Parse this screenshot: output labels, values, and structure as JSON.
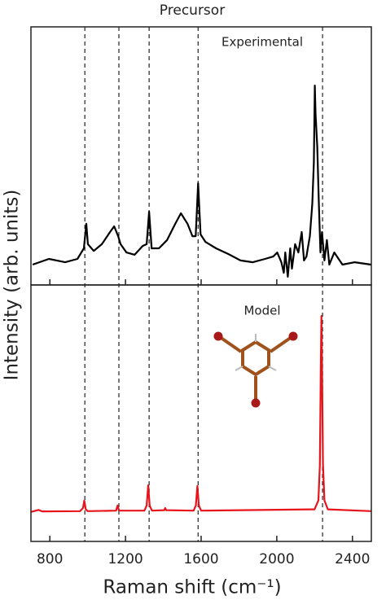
{
  "chart_data": {
    "type": "line",
    "title": "Precursor",
    "xlabel": "Raman shift (cm⁻¹)",
    "ylabel": "Intensity (arb. units)",
    "xlim": [
      700,
      2500
    ],
    "xticks": [
      800,
      1200,
      1600,
      2000,
      2400
    ],
    "ylim": [
      0,
      100
    ],
    "vlines": [
      985,
      1165,
      1325,
      1584,
      2242
    ],
    "series": [
      {
        "name": "Experimental",
        "color": "#000000",
        "x": [
          709,
          795,
          881,
          946,
          980,
          993,
          1001,
          1032,
          1075,
          1118,
          1140,
          1161,
          1174,
          1205,
          1248,
          1291,
          1312,
          1325,
          1338,
          1377,
          1420,
          1463,
          1493,
          1528,
          1554,
          1571,
          1584,
          1597,
          1623,
          1679,
          1744,
          1808,
          1873,
          1938,
          1981,
          2002,
          2024,
          2037,
          2045,
          2058,
          2071,
          2080,
          2097,
          2114,
          2132,
          2144,
          2157,
          2175,
          2188,
          2196,
          2201,
          2205,
          2214,
          2222,
          2231,
          2239,
          2252,
          2265,
          2278,
          2304,
          2347,
          2412,
          2498
        ],
        "values": [
          7.9,
          10.1,
          8.8,
          10.1,
          14.2,
          23.7,
          15.8,
          13.2,
          15.8,
          20.5,
          22.7,
          18.9,
          15.8,
          12.6,
          11.7,
          15.1,
          15.8,
          28.4,
          14.2,
          14.2,
          17.4,
          23.7,
          27.8,
          23.7,
          18.9,
          18.9,
          39.4,
          19.6,
          16.7,
          14.2,
          12,
          9.5,
          8.8,
          10.1,
          11,
          12.6,
          8.8,
          4.7,
          12.6,
          3.2,
          14.2,
          6.3,
          15.8,
          12.6,
          20.5,
          9.5,
          11,
          18.9,
          31.5,
          47.3,
          77.3,
          66.2,
          53.6,
          33.1,
          12.6,
          20.5,
          9.5,
          17.4,
          7.9,
          12.6,
          7.9,
          8.8,
          7.9
        ]
      },
      {
        "name": "Model",
        "color": "#e8141c",
        "x": [
          700,
          740,
          760,
          960,
          975,
          982,
          990,
          1000,
          1150,
          1158,
          1166,
          1300,
          1312,
          1320,
          1328,
          1340,
          1405,
          1410,
          1415,
          1560,
          1572,
          1580,
          1588,
          1600,
          2200,
          2220,
          2228,
          2233,
          2236,
          2239,
          2244,
          2252,
          2270,
          2500
        ],
        "values": [
          11.5,
          12.3,
          11.7,
          11.8,
          13,
          15.9,
          12.5,
          11.8,
          12,
          14,
          12,
          12,
          14,
          21.9,
          14,
          12,
          12.2,
          13,
          12.2,
          12,
          14,
          21.6,
          14,
          12,
          12.5,
          16,
          30,
          70,
          87.9,
          70,
          30,
          16,
          12.5,
          11.8
        ]
      }
    ]
  }
}
